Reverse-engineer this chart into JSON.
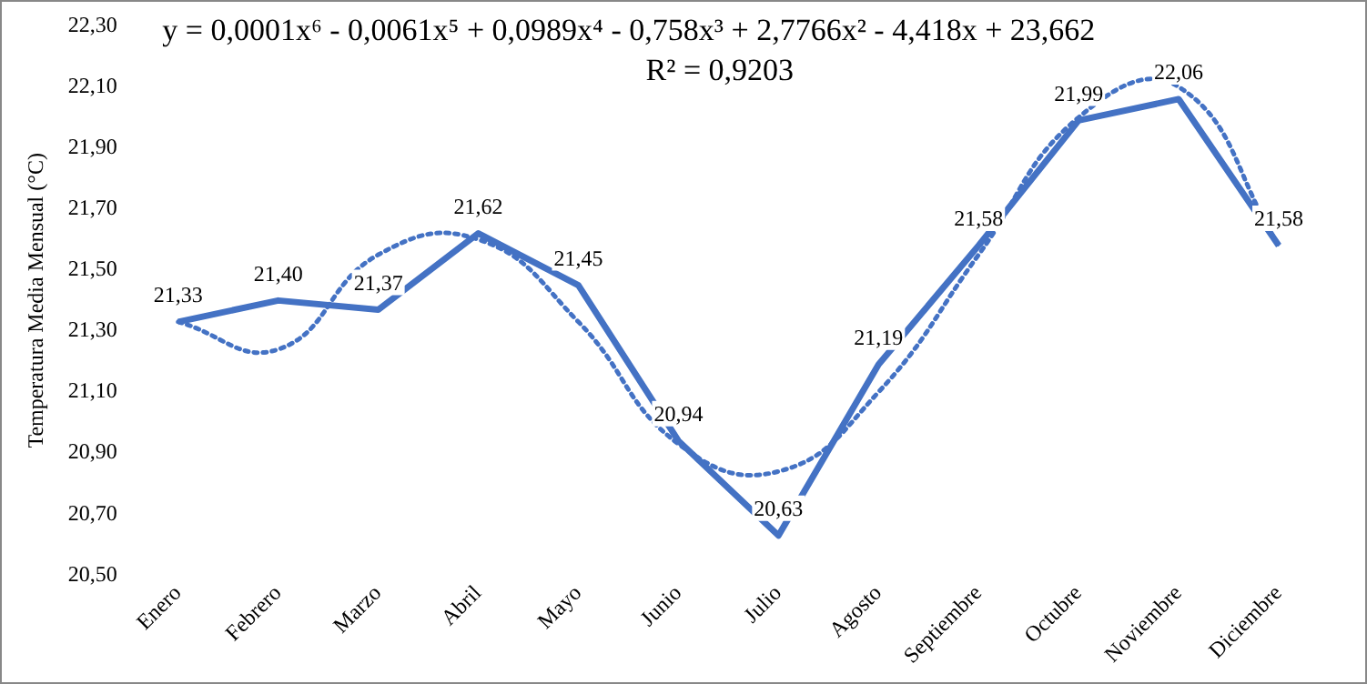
{
  "chart_data": {
    "type": "line",
    "ylabel": "Temperatura Media Mensual (°C)",
    "categories": [
      "Enero",
      "Febrero",
      "Marzo",
      "Abril",
      "Mayo",
      "Junio",
      "Julio",
      "Agosto",
      "Septiembre",
      "Octubre",
      "Noviembre",
      "Diciembre"
    ],
    "series": [
      {
        "type": "line",
        "color": "#4472c4",
        "line_style": "solid",
        "values": [
          21.33,
          21.4,
          21.37,
          21.62,
          21.45,
          20.94,
          20.63,
          21.19,
          21.58,
          21.99,
          22.06,
          21.58
        ],
        "value_labels": [
          "21,33",
          "21,40",
          "21,37",
          "21,62",
          "21,45",
          "20,94",
          "20,63",
          "21,19",
          "21,58",
          "21,99",
          "22,06",
          "21,58"
        ]
      },
      {
        "type": "line",
        "color": "#4472c4",
        "line_style": "dotted",
        "values": [
          21.33,
          21.24,
          21.55,
          21.6,
          21.33,
          20.93,
          20.84,
          21.1,
          21.55,
          22.0,
          22.1,
          21.58
        ]
      }
    ],
    "ylim": [
      20.5,
      22.3
    ],
    "yticks": [
      {
        "value": 20.5,
        "label": "20,50"
      },
      {
        "value": 20.7,
        "label": "20,70"
      },
      {
        "value": 20.9,
        "label": "20,90"
      },
      {
        "value": 21.1,
        "label": "21,10"
      },
      {
        "value": 21.3,
        "label": "21,30"
      },
      {
        "value": 21.5,
        "label": "21,50"
      },
      {
        "value": 21.7,
        "label": "21,70"
      },
      {
        "value": 21.9,
        "label": "21,90"
      },
      {
        "value": 22.1,
        "label": "22,10"
      },
      {
        "value": 22.3,
        "label": "22,30"
      }
    ],
    "annotations": [
      "y = 0,0001x⁶ - 0,0061x⁵ + 0,0989x⁴ - 0,758x³ + 2,7766x² - 4,418x + 23,662",
      "R² = 0,9203"
    ],
    "grid": false,
    "legend": false,
    "marker": "none"
  }
}
